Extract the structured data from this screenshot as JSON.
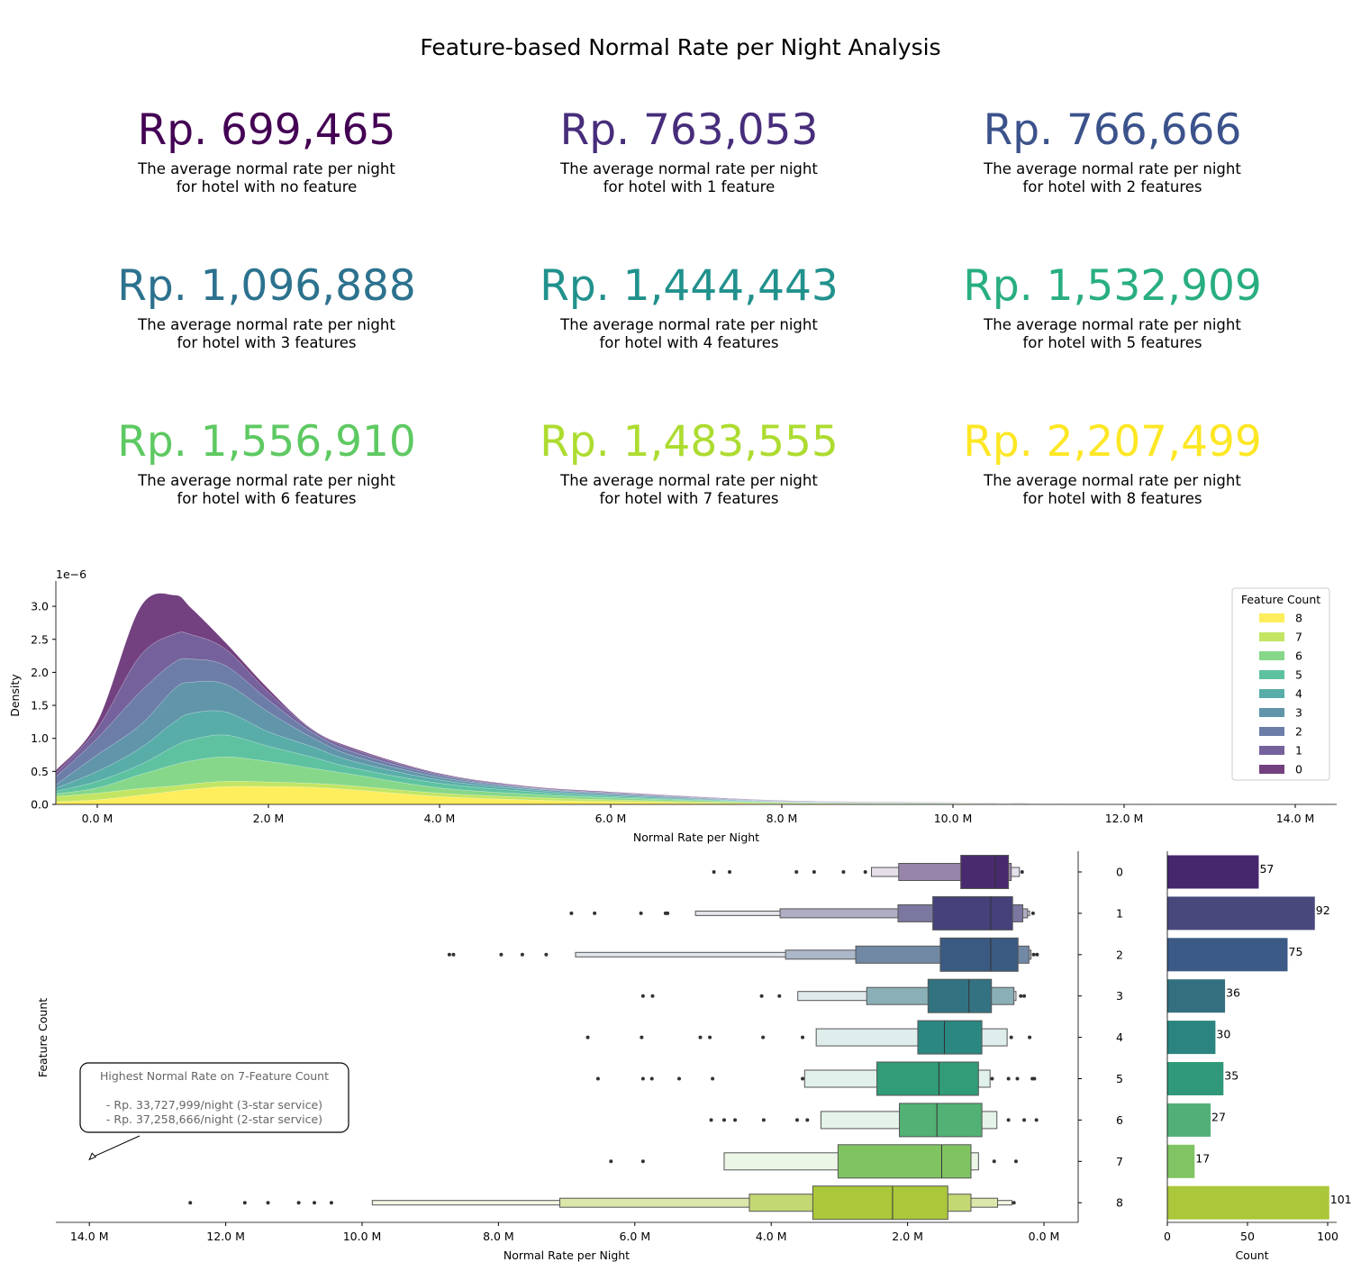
{
  "title": "Feature-based Normal Rate per Night Analysis",
  "kpis": [
    {
      "value": "Rp. 699,465",
      "line1": "The average normal rate per night",
      "line2": "for hotel with no feature",
      "color": "#440154"
    },
    {
      "value": "Rp. 763,053",
      "line1": "The average normal rate per night",
      "line2": "for hotel with 1 feature",
      "color": "#472d7b"
    },
    {
      "value": "Rp. 766,666",
      "line1": "The average normal rate per night",
      "line2": "for hotel with 2 features",
      "color": "#3b528b"
    },
    {
      "value": "Rp. 1,096,888",
      "line1": "The average normal rate per night",
      "line2": "for hotel with 3 features",
      "color": "#2c728e"
    },
    {
      "value": "Rp. 1,444,443",
      "line1": "The average normal rate per night",
      "line2": "for hotel with 4 features",
      "color": "#21918c"
    },
    {
      "value": "Rp. 1,532,909",
      "line1": "The average normal rate per night",
      "line2": "for hotel with 5 features",
      "color": "#28ae80"
    },
    {
      "value": "Rp. 1,556,910",
      "line1": "The average normal rate per night",
      "line2": "for hotel with 6 features",
      "color": "#5ec962"
    },
    {
      "value": "Rp. 1,483,555",
      "line1": "The average normal rate per night",
      "line2": "for hotel with 7 features",
      "color": "#addc30"
    },
    {
      "value": "Rp. 2,207,499",
      "line1": "The average normal rate per night",
      "line2": "for hotel with 8 features",
      "color": "#fde725"
    }
  ],
  "chart_data": [
    {
      "type": "area",
      "stacked": true,
      "xlabel": "Normal Rate per Night",
      "ylabel": "Density",
      "y_offset_label": "1e−6",
      "xlim": [
        -0.48,
        14.48
      ],
      "ylim": [
        0,
        3.35
      ],
      "x_unit": "M",
      "xticks": [
        "0.0 M",
        "2.0 M",
        "4.0 M",
        "6.0 M",
        "8.0 M",
        "10.0 M",
        "12.0 M",
        "14.0 M"
      ],
      "xtick_values": [
        0,
        2,
        4,
        6,
        8,
        10,
        12,
        14
      ],
      "yticks": [
        "0.0",
        "0.5",
        "1.0",
        "1.5",
        "2.0",
        "2.5",
        "3.0"
      ],
      "ytick_values": [
        0,
        0.5,
        1,
        1.5,
        2,
        2.5,
        3
      ],
      "legend": {
        "title": "Feature Count",
        "position": "top-right"
      },
      "x": [
        -0.48,
        0,
        0.5,
        0.9,
        1.1,
        1.5,
        2,
        2.5,
        3,
        4,
        5,
        6,
        8,
        10,
        12,
        14.48
      ],
      "series": [
        {
          "name": "8",
          "color": "#fde725",
          "values": [
            0.04,
            0.07,
            0.14,
            0.2,
            0.23,
            0.27,
            0.27,
            0.26,
            0.22,
            0.12,
            0.07,
            0.04,
            0.01,
            0.005,
            0.002,
            0
          ]
        },
        {
          "name": "7",
          "color": "#addc30",
          "values": [
            0.08,
            0.1,
            0.1,
            0.08,
            0.08,
            0.08,
            0.07,
            0.06,
            0.06,
            0.05,
            0.04,
            0.03,
            0.01,
            0.005,
            0.003,
            0
          ]
        },
        {
          "name": "6",
          "color": "#5ec962",
          "values": [
            0.04,
            0.08,
            0.21,
            0.32,
            0.35,
            0.37,
            0.31,
            0.23,
            0.17,
            0.08,
            0.05,
            0.03,
            0.01,
            0.005,
            0.002,
            0
          ]
        },
        {
          "name": "5",
          "color": "#28ae80",
          "values": [
            0.04,
            0.1,
            0.15,
            0.28,
            0.32,
            0.33,
            0.23,
            0.17,
            0.1,
            0.07,
            0.04,
            0.02,
            0.005,
            0.003,
            0.001,
            0
          ]
        },
        {
          "name": "4",
          "color": "#21918c",
          "values": [
            0.05,
            0.15,
            0.25,
            0.37,
            0.4,
            0.35,
            0.22,
            0.16,
            0.1,
            0.05,
            0.03,
            0.02,
            0.005,
            0.002,
            0.001,
            0
          ]
        },
        {
          "name": "3",
          "color": "#2c728e",
          "values": [
            0.05,
            0.25,
            0.35,
            0.5,
            0.47,
            0.42,
            0.3,
            0.14,
            0.08,
            0.04,
            0.02,
            0.02,
            0.005,
            0.002,
            0.001,
            0
          ]
        },
        {
          "name": "2",
          "color": "#3b528b",
          "values": [
            0.12,
            0.25,
            0.5,
            0.4,
            0.35,
            0.28,
            0.18,
            0.08,
            0.06,
            0.03,
            0.01,
            0.01,
            0.005,
            0.003,
            0,
            0
          ]
        },
        {
          "name": "1",
          "color": "#472d7b",
          "values": [
            0.06,
            0.15,
            0.55,
            0.43,
            0.37,
            0.25,
            0.12,
            0.04,
            0.04,
            0.02,
            0.01,
            0.01,
            0.005,
            0.003,
            0,
            0
          ]
        },
        {
          "name": "0",
          "color": "#440154",
          "values": [
            0.04,
            0.1,
            0.73,
            0.59,
            0.4,
            0.1,
            0.05,
            0.01,
            0.02,
            0.01,
            0.01,
            0.01,
            0.005,
            0.002,
            0,
            0
          ]
        }
      ]
    },
    {
      "type": "boxen",
      "orientation": "horizontal",
      "x_inverted": true,
      "xlabel": "Normal Rate per Night",
      "ylabel": "Feature Count",
      "xlim": [
        14.5,
        -0.5
      ],
      "x_unit": "M",
      "xticks": [
        "14.0 M",
        "12.0 M",
        "10.0 M",
        "8.0 M",
        "6.0 M",
        "4.0 M",
        "2.0 M",
        "0.0 M"
      ],
      "xtick_values": [
        14,
        12,
        10,
        8,
        6,
        4,
        2,
        0
      ],
      "categories": [
        "0",
        "1",
        "2",
        "3",
        "4",
        "5",
        "6",
        "7",
        "8"
      ],
      "rows": [
        {
          "color": "#4a2a6e",
          "median": 0.71,
          "levels": [
            [
              0.52,
              1.22
            ],
            [
              0.48,
              2.13
            ],
            [
              0.36,
              2.53
            ]
          ],
          "outliers": [
            4.84,
            4.61,
            3.63,
            3.37,
            2.94,
            2.62,
            0.32
          ]
        },
        {
          "color": "#45417a",
          "median": 0.78,
          "levels": [
            [
              0.46,
              1.63
            ],
            [
              0.31,
              2.14
            ],
            [
              0.24,
              3.87
            ],
            [
              0.21,
              5.11
            ]
          ],
          "outliers": [
            6.93,
            6.59,
            5.91,
            5.55,
            5.52,
            0.16
          ]
        },
        {
          "color": "#3a5a82",
          "median": 0.78,
          "levels": [
            [
              0.38,
              1.52
            ],
            [
              0.22,
              2.76
            ],
            [
              0.19,
              3.79
            ],
            [
              0.19,
              6.87
            ]
          ],
          "outliers": [
            8.72,
            8.66,
            7.96,
            7.65,
            7.3,
            0.15,
            0.1
          ]
        },
        {
          "color": "#337381",
          "median": 1.1,
          "levels": [
            [
              0.77,
              1.7
            ],
            [
              0.44,
              2.6
            ],
            [
              0.41,
              3.61
            ]
          ],
          "outliers": [
            5.88,
            5.74,
            4.14,
            3.88,
            0.34,
            0.29
          ]
        },
        {
          "color": "#2a8781",
          "median": 1.46,
          "levels": [
            [
              0.91,
              1.85
            ],
            [
              0.54,
              3.34
            ]
          ],
          "outliers": [
            6.69,
            5.9,
            5.04,
            4.9,
            4.12,
            3.54,
            0.48,
            0.21
          ]
        },
        {
          "color": "#329b78",
          "median": 1.54,
          "levels": [
            [
              0.96,
              2.45
            ],
            [
              0.79,
              3.51
            ]
          ],
          "outliers": [
            6.54,
            5.88,
            5.75,
            5.35,
            4.86,
            3.54,
            0.76,
            0.52,
            0.39,
            0.17,
            0.14
          ]
        },
        {
          "color": "#52b175",
          "median": 1.57,
          "levels": [
            [
              0.91,
              2.12
            ],
            [
              0.69,
              3.27
            ]
          ],
          "outliers": [
            4.88,
            4.69,
            4.53,
            4.11,
            3.62,
            3.47,
            0.52,
            0.29,
            0.11
          ]
        },
        {
          "color": "#80c462",
          "median": 1.5,
          "levels": [
            [
              1.07,
              3.02
            ],
            [
              0.96,
              4.69
            ]
          ],
          "outliers": [
            6.35,
            5.88,
            0.73,
            0.41
          ]
        },
        {
          "color": "#abc83b",
          "median": 2.22,
          "levels": [
            [
              1.41,
              3.39
            ],
            [
              1.07,
              4.32
            ],
            [
              0.68,
              7.1
            ],
            [
              0.47,
              9.85
            ]
          ],
          "outliers": [
            12.52,
            11.72,
            11.38,
            10.93,
            10.7,
            10.45,
            0.44
          ]
        }
      ],
      "annotation": {
        "lines": [
          "Highest Normal Rate on 7-Feature Count",
          "",
          "- Rp. 33,727,999/night (3-star service)",
          "- Rp. 37,258,666/night (2-star service)"
        ],
        "arrow_to": [
          14.0,
          "7"
        ]
      }
    },
    {
      "type": "bar",
      "orientation": "horizontal",
      "xlabel": "Count",
      "xlim": [
        0,
        105
      ],
      "xticks": [
        "0",
        "50",
        "100"
      ],
      "xtick_values": [
        0,
        50,
        100
      ],
      "categories": [
        "0",
        "1",
        "2",
        "3",
        "4",
        "5",
        "6",
        "7",
        "8"
      ],
      "values": [
        57,
        92,
        75,
        36,
        30,
        35,
        27,
        17,
        101
      ],
      "colors": [
        "#46276e",
        "#48487d",
        "#3b5a86",
        "#346f7f",
        "#2b8480",
        "#30997a",
        "#52b077",
        "#80c463",
        "#abc73a"
      ]
    }
  ]
}
